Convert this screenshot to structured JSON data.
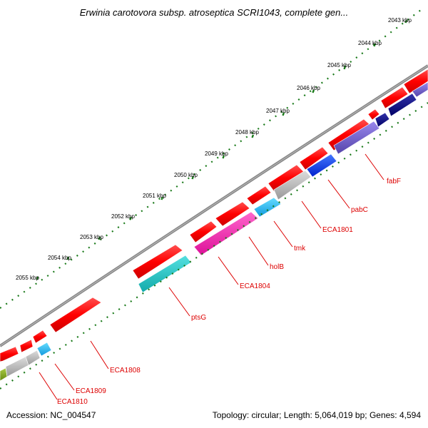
{
  "title": "Erwinia carotovora subsp. atroseptica SCRI1043, complete gen...",
  "footer": {
    "accession": "Accession: NC_004547",
    "summary": "Topology: circular; Length: 5,064,019 bp; Genes: 4,594"
  },
  "ruler": {
    "ticks": [
      "2043 kbp",
      "2044 kbp",
      "2045 kbp",
      "2046 kbp",
      "2047 kbp",
      "2048 kbp",
      "2049 kbp",
      "2050 kbp",
      "2051 kbp",
      "2052 kbp",
      "2053 kbp",
      "2054 kbp",
      "2055 kbp"
    ]
  },
  "genes": {
    "labels": [
      "fabF",
      "pabC",
      "ECA1801",
      "tmk",
      "holB",
      "ECA1804",
      "ptsG",
      "ECA1808",
      "ECA1809",
      "ECA1810"
    ]
  },
  "colors": {
    "backbone": "#888888",
    "tick_dots": "#1a7a1a",
    "forward_strand": "#ff0000",
    "label_red": "#dd0000",
    "magenta": "#ff33aa",
    "cyan": "#22c8c8",
    "sky": "#33bbee",
    "gray": "#bbbbbb",
    "blue": "#1144ee",
    "navy": "#1a1a88",
    "purple": "#7766cc",
    "olive": "#88aa22"
  }
}
